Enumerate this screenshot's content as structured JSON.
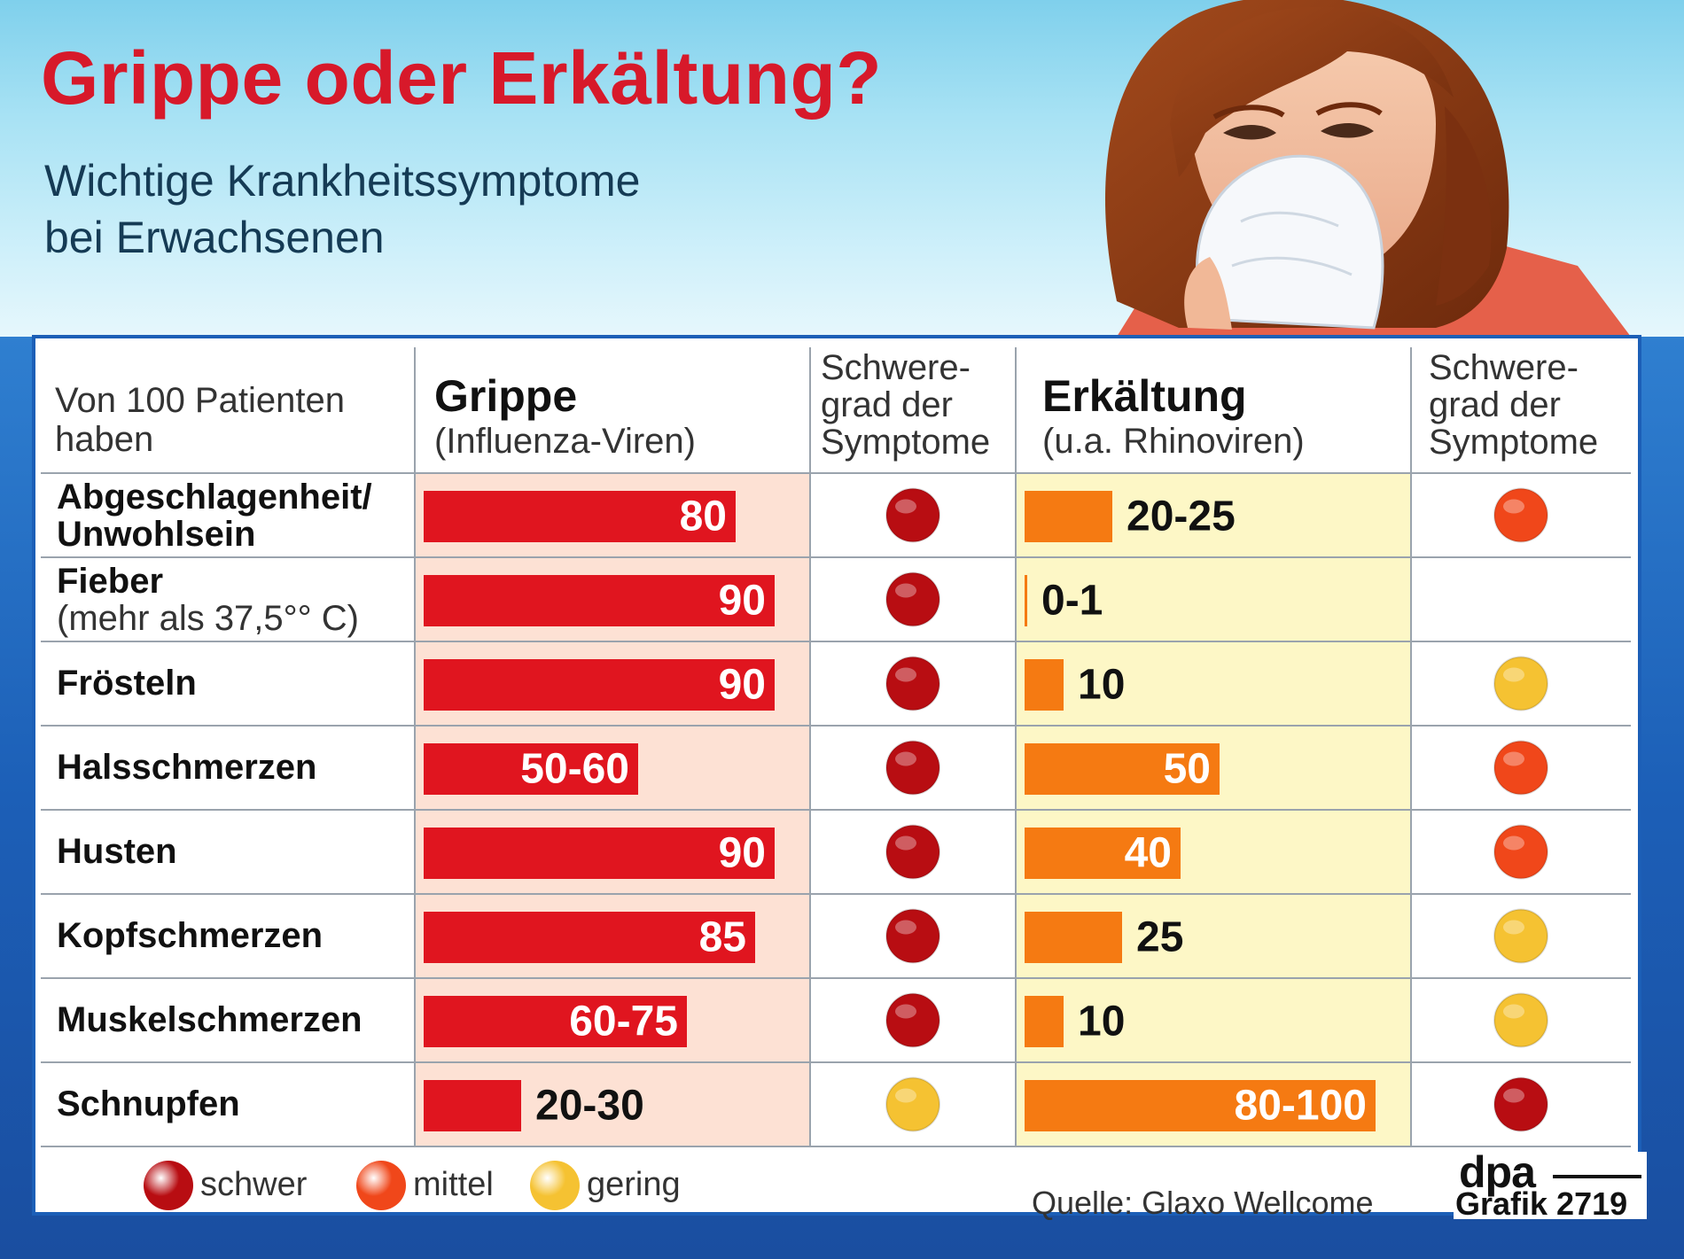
{
  "header": {
    "title": "Grippe oder Erkältung?",
    "subtitle_line1": "Wichtige Krankheitssymptome",
    "subtitle_line2": "bei Erwachsenen"
  },
  "table_header": {
    "intro_line1": "Von 100 Patienten",
    "intro_line2": "haben",
    "flu_title": "Grippe",
    "flu_sub": "(Influenza-Viren)",
    "cold_title": "Erkältung",
    "cold_sub": "(u.a. Rhinoviren)",
    "severity_line1": "Schwere-",
    "severity_line2": "grad der",
    "severity_line3": "Symptome"
  },
  "chart_data": {
    "type": "bar",
    "value_unit": "of 100 patients",
    "categories": [
      "Abgeschlagenheit/ Unwohlsein",
      "Fieber",
      "Frösteln",
      "Halsschmerzen",
      "Husten",
      "Kopfschmerzen",
      "Muskelschmerzen",
      "Schnupfen"
    ],
    "category_notes": [
      "",
      "(mehr als 37,5°° C)",
      "",
      "",
      "",
      "",
      "",
      ""
    ],
    "series": [
      {
        "name": "Grippe",
        "labels": [
          "80",
          "90",
          "90",
          "50-60",
          "90",
          "85",
          "60-75",
          "20-30"
        ],
        "values": [
          80,
          90,
          90,
          55,
          90,
          85,
          67.5,
          25
        ],
        "severity": [
          "schwer",
          "schwer",
          "schwer",
          "schwer",
          "schwer",
          "schwer",
          "schwer",
          "gering"
        ]
      },
      {
        "name": "Erkältung",
        "labels": [
          "20-25",
          "0-1",
          "10",
          "50",
          "40",
          "25",
          "10",
          "80-100"
        ],
        "values": [
          22.5,
          0.5,
          10,
          50,
          40,
          25,
          10,
          90
        ],
        "severity": [
          "mittel",
          "",
          "gering",
          "mittel",
          "mittel",
          "gering",
          "gering",
          "schwer"
        ]
      }
    ],
    "xlim": [
      0,
      100
    ]
  },
  "legend": [
    {
      "key": "schwer",
      "label": "schwer",
      "color": "#b80d12"
    },
    {
      "key": "mittel",
      "label": "mittel",
      "color": "#f0471a"
    },
    {
      "key": "gering",
      "label": "gering",
      "color": "#f5c232"
    }
  ],
  "colors": {
    "flu_bar": "#e0151f",
    "cold_bar": "#f57a12",
    "flu_cell_bg": "#fde1d4",
    "cold_cell_bg": "#fdf7c6",
    "title": "#d7192a"
  },
  "footer": {
    "source": "Quelle: Glaxo Wellcome",
    "logo_text": "dpa",
    "graphic_id": "Grafik 2719"
  }
}
